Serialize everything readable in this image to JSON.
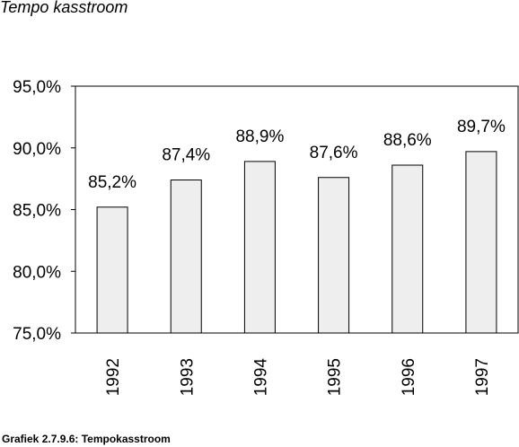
{
  "chart_data": {
    "type": "bar",
    "title": "Tempo kasstroom",
    "caption": "Grafiek 2.7.9.6: Tempokasstroom",
    "categories": [
      "1992",
      "1993",
      "1994",
      "1995",
      "1996",
      "1997"
    ],
    "values": [
      85.2,
      87.4,
      88.9,
      87.6,
      88.6,
      89.7
    ],
    "data_labels": [
      "85,2%",
      "87,4%",
      "88,9%",
      "87,6%",
      "88,6%",
      "89,7%"
    ],
    "ylim": [
      75,
      95
    ],
    "y_ticks": [
      95,
      90,
      85,
      80,
      75
    ],
    "y_tick_labels": [
      "95,0%",
      "90,0%",
      "85,0%",
      "80,0%",
      "75,0%"
    ],
    "xlabel": "",
    "ylabel": "",
    "grid": false,
    "legend": "none",
    "bar_fill": "#eeeeee",
    "bar_stroke": "#000000"
  }
}
